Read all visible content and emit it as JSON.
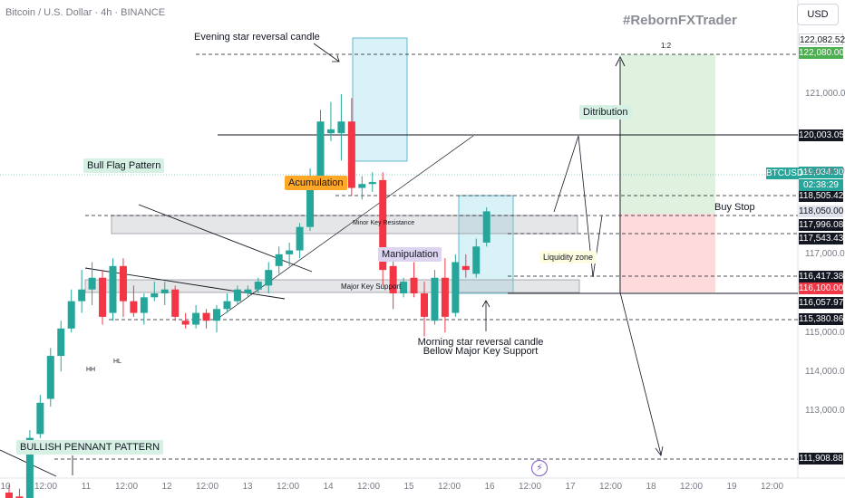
{
  "header": {
    "title": "Bitcoin / U.S. Dollar · 4h · BINANCE",
    "brand": "#RebornFXTrader",
    "currency_button": "USD"
  },
  "annotations": {
    "evening_star": "Evening star reversal candle",
    "bull_flag": "Bull Flag Pattern",
    "accumulation": "Acumulation",
    "manipulation": "Manipulation",
    "distribution": "Ditribution",
    "liquidity_zone": "Liquidity zone",
    "minor_key_resistance": "Minor Key Resistance",
    "major_key_support": "Major Key Support",
    "morning_star_1": "Morning star reversal candle",
    "morning_star_2": "Bellow Major Key Support",
    "buy_stop": "Buy Stop",
    "bullish_pennant": "BULLISH PENNANT PATTERN",
    "hh": "HH",
    "hl": "HL",
    "ratio": "1:2"
  },
  "symbol_badge": "BTCUSD",
  "countdown": "02:38:29",
  "price_labels": [
    {
      "text": "122,082.52",
      "style": "white"
    },
    {
      "text": "122,080.00",
      "style": "lgreen"
    },
    {
      "text": "120,003.05",
      "style": "black"
    },
    {
      "text": "119,034.30",
      "style": "green"
    },
    {
      "text": "118,505.42",
      "style": "black"
    },
    {
      "text": "118,050.00",
      "style": "grey"
    },
    {
      "text": "117,996.08",
      "style": "black"
    },
    {
      "text": "117,543.43",
      "style": "black"
    },
    {
      "text": "116,417.38",
      "style": "black"
    },
    {
      "text": "116,100.00",
      "style": "red"
    },
    {
      "text": "116,057.97",
      "style": "black"
    },
    {
      "text": "115,380.86",
      "style": "black"
    },
    {
      "text": "111,908.88",
      "style": "black"
    }
  ],
  "price_axis_ticks": [
    "121,000.00",
    "119,000.00",
    "117,000.00",
    "115,000.00",
    "114,000.00",
    "113,000.00"
  ],
  "time_axis_ticks": [
    "10",
    "12:00",
    "11",
    "12:00",
    "12",
    "12:00",
    "13",
    "12:00",
    "14",
    "12:00",
    "15",
    "12:00",
    "16",
    "12:00",
    "17",
    "12:00",
    "18",
    "12:00",
    "19",
    "12:00"
  ],
  "colors": {
    "up": "#26a69a",
    "down": "#f23645",
    "target_zone": "#4caf50",
    "stop_zone": "#f23645",
    "consolidation_box": "#7fd4e8"
  },
  "chart_data": {
    "type": "candlestick",
    "title": "Bitcoin / U.S. Dollar · 4h · BINANCE",
    "xlabel": "",
    "ylabel": "",
    "ylim": [
      111500,
      123000
    ],
    "key_levels": [
      122082.52,
      122080.0,
      120003.05,
      118505.42,
      118050.0,
      117996.08,
      117543.43,
      116417.38,
      116100.0,
      116057.97,
      115380.86,
      111908.88
    ],
    "last_price": 119034.3,
    "candles": [
      {
        "o": 111800,
        "h": 112000,
        "l": 111400,
        "c": 111650
      },
      {
        "o": 111700,
        "h": 111900,
        "l": 111450,
        "c": 111600
      },
      {
        "o": 111500,
        "h": 113400,
        "l": 111400,
        "c": 113200
      },
      {
        "o": 113300,
        "h": 114300,
        "l": 113200,
        "c": 114100
      },
      {
        "o": 114200,
        "h": 115500,
        "l": 114000,
        "c": 115300
      },
      {
        "o": 115300,
        "h": 116200,
        "l": 114900,
        "c": 116000
      },
      {
        "o": 116000,
        "h": 117000,
        "l": 115900,
        "c": 116700
      },
      {
        "o": 116700,
        "h": 117500,
        "l": 116400,
        "c": 117000
      },
      {
        "o": 117000,
        "h": 117700,
        "l": 116600,
        "c": 117300
      },
      {
        "o": 117300,
        "h": 117500,
        "l": 116100,
        "c": 116300
      },
      {
        "o": 116400,
        "h": 117800,
        "l": 116200,
        "c": 117600
      },
      {
        "o": 117600,
        "h": 117800,
        "l": 116300,
        "c": 116700
      },
      {
        "o": 116700,
        "h": 117100,
        "l": 116300,
        "c": 116400
      },
      {
        "o": 116400,
        "h": 116900,
        "l": 116100,
        "c": 116800
      },
      {
        "o": 116800,
        "h": 117200,
        "l": 116700,
        "c": 116900
      },
      {
        "o": 116900,
        "h": 117200,
        "l": 116600,
        "c": 117000
      },
      {
        "o": 117000,
        "h": 117100,
        "l": 116200,
        "c": 116300
      },
      {
        "o": 116200,
        "h": 116400,
        "l": 116000,
        "c": 116100
      },
      {
        "o": 116100,
        "h": 116600,
        "l": 116000,
        "c": 116400
      },
      {
        "o": 116400,
        "h": 116500,
        "l": 116000,
        "c": 116200
      },
      {
        "o": 116200,
        "h": 116600,
        "l": 115900,
        "c": 116500
      },
      {
        "o": 116500,
        "h": 116900,
        "l": 116400,
        "c": 116700
      },
      {
        "o": 116700,
        "h": 117100,
        "l": 116600,
        "c": 117000
      },
      {
        "o": 116900,
        "h": 117100,
        "l": 116800,
        "c": 117000
      },
      {
        "o": 117000,
        "h": 117300,
        "l": 116900,
        "c": 117200
      },
      {
        "o": 117100,
        "h": 117700,
        "l": 116900,
        "c": 117500
      },
      {
        "o": 117600,
        "h": 118100,
        "l": 117400,
        "c": 117900
      },
      {
        "o": 117900,
        "h": 118200,
        "l": 117600,
        "c": 118000
      },
      {
        "o": 118000,
        "h": 118700,
        "l": 117800,
        "c": 118600
      },
      {
        "o": 118600,
        "h": 120100,
        "l": 118500,
        "c": 119900
      },
      {
        "o": 119900,
        "h": 121600,
        "l": 119700,
        "c": 121300
      },
      {
        "o": 121000,
        "h": 121800,
        "l": 120800,
        "c": 121100
      },
      {
        "o": 121000,
        "h": 122000,
        "l": 120300,
        "c": 121300
      },
      {
        "o": 121300,
        "h": 121900,
        "l": 119400,
        "c": 119600
      },
      {
        "o": 119600,
        "h": 119900,
        "l": 119300,
        "c": 119700
      },
      {
        "o": 119700,
        "h": 120000,
        "l": 119500,
        "c": 119750
      },
      {
        "o": 119800,
        "h": 120000,
        "l": 117100,
        "c": 117500
      },
      {
        "o": 117600,
        "h": 117800,
        "l": 116500,
        "c": 116900
      },
      {
        "o": 116900,
        "h": 117300,
        "l": 116800,
        "c": 117200
      },
      {
        "o": 117300,
        "h": 117700,
        "l": 116800,
        "c": 116900
      },
      {
        "o": 116900,
        "h": 117200,
        "l": 115800,
        "c": 116300
      },
      {
        "o": 116200,
        "h": 117500,
        "l": 116100,
        "c": 117300
      },
      {
        "o": 117300,
        "h": 117800,
        "l": 115900,
        "c": 116300
      },
      {
        "o": 116400,
        "h": 117900,
        "l": 116300,
        "c": 117700
      },
      {
        "o": 117600,
        "h": 117900,
        "l": 117300,
        "c": 117500
      },
      {
        "o": 117400,
        "h": 118300,
        "l": 117300,
        "c": 118100
      },
      {
        "o": 118200,
        "h": 119100,
        "l": 118100,
        "c": 119000
      }
    ]
  }
}
